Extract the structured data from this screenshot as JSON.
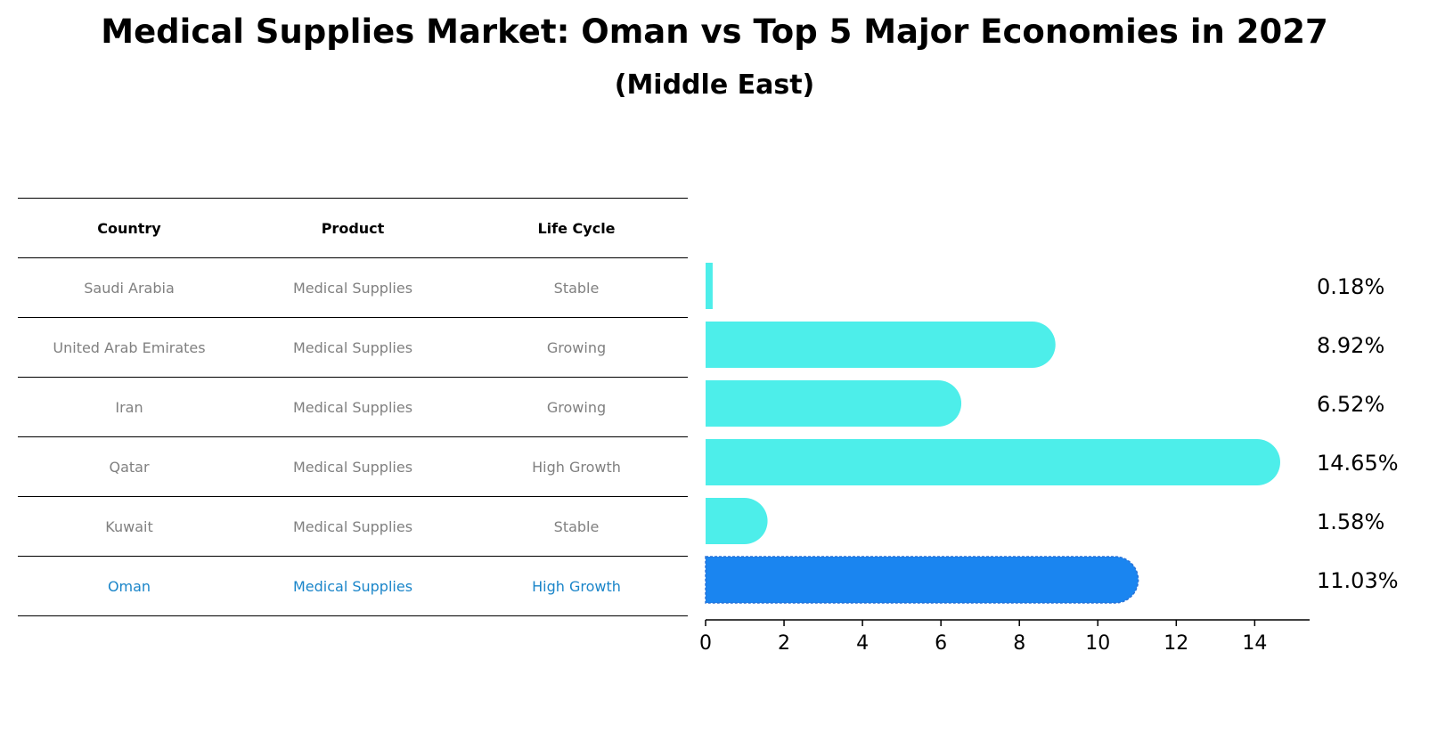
{
  "title": "Medical Supplies Market: Oman vs Top 5 Major Economies in 2027",
  "subtitle": "(Middle East)",
  "table": {
    "headers": [
      "Country",
      "Product",
      "Life Cycle"
    ],
    "rows": [
      [
        "Saudi Arabia",
        "Medical Supplies",
        "Stable"
      ],
      [
        "United Arab Emirates",
        "Medical Supplies",
        "Growing"
      ],
      [
        "Iran",
        "Medical Supplies",
        "Growing"
      ],
      [
        "Qatar",
        "Medical Supplies",
        "High Growth"
      ],
      [
        "Kuwait",
        "Medical Supplies",
        "Stable"
      ],
      [
        "Oman",
        "Medical Supplies",
        "High Growth"
      ]
    ]
  },
  "chart_data": {
    "type": "bar",
    "orientation": "horizontal",
    "categories": [
      "Saudi Arabia",
      "United Arab Emirates",
      "Iran",
      "Qatar",
      "Kuwait",
      "Oman"
    ],
    "values": [
      0.18,
      8.92,
      6.52,
      14.65,
      1.58,
      11.03
    ],
    "value_labels": [
      "0.18%",
      "8.92%",
      "6.52%",
      "14.65%",
      "1.58%",
      "11.03%"
    ],
    "highlight": "Oman",
    "xlim": [
      0,
      15.4
    ],
    "xticks": [
      0,
      2,
      4,
      6,
      8,
      10,
      12,
      14
    ],
    "xtick_labels": [
      "0",
      "2",
      "4",
      "6",
      "8",
      "10",
      "12",
      "14"
    ],
    "colors": {
      "default": "#4deeea",
      "highlight": "#1a85f0"
    }
  }
}
